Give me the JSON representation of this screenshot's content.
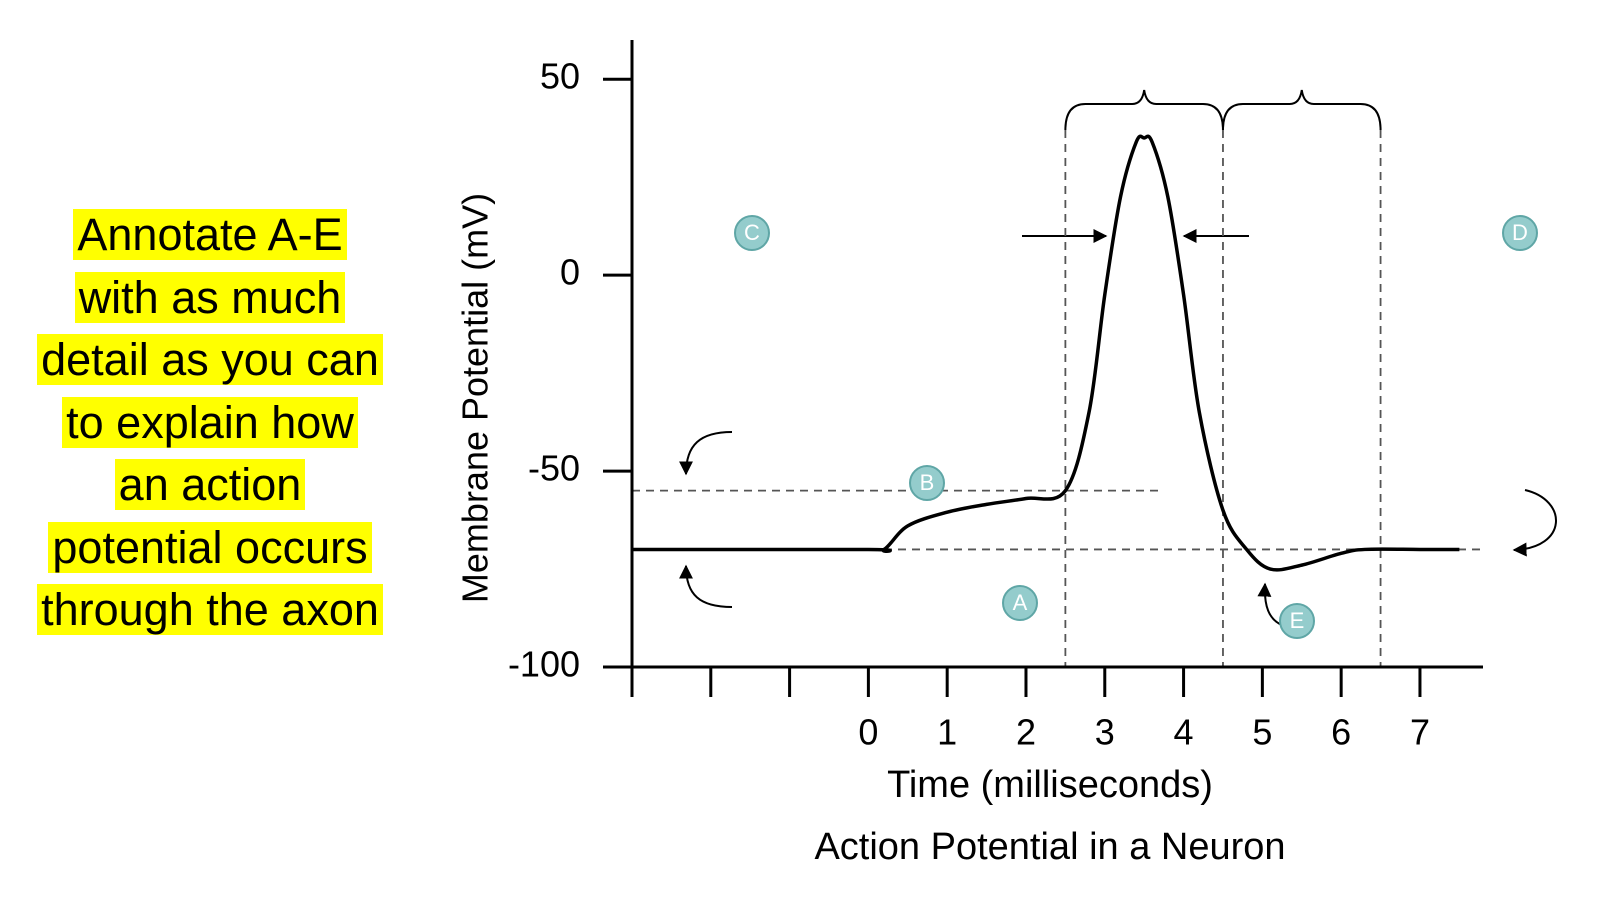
{
  "annotation": [
    "Annotate A-E",
    "with as much",
    "detail as you can",
    "to explain how",
    "an action",
    "potential occurs",
    "through the axon"
  ],
  "markers": [
    "A",
    "B",
    "C",
    "D",
    "E"
  ],
  "chart_data": {
    "type": "line",
    "title": "Action Potential in a Neuron",
    "xlabel": "Time (milliseconds)",
    "ylabel": "Membrane Potential (mV)",
    "x": [
      -3,
      0,
      0.2,
      0.5,
      1,
      1.5,
      2,
      2.5,
      2.8,
      3,
      3.2,
      3.4,
      3.5,
      3.6,
      3.8,
      4,
      4.2,
      4.5,
      4.8,
      5.1,
      5.5,
      6,
      6.3,
      7,
      7.5
    ],
    "values": [
      -70,
      -70,
      -70,
      -64,
      -60.5,
      -58.5,
      -57,
      -55,
      -35,
      -5,
      20,
      34,
      35,
      34,
      20,
      -5,
      -35,
      -60,
      -70,
      -75,
      -74,
      -71,
      -70,
      -70,
      -70
    ],
    "color": "#000000",
    "xlim": [
      -3,
      7.8
    ],
    "ylim": [
      -100,
      60
    ],
    "xticks": [
      {
        "value": -3,
        "label": null
      },
      {
        "value": -2,
        "label": null
      },
      {
        "value": -1,
        "label": null
      },
      0,
      1,
      2,
      3,
      4,
      5,
      6,
      7
    ],
    "yticks": [
      -100,
      -50,
      0,
      50
    ],
    "threshold_line": {
      "value": -55,
      "end": 3.7
    },
    "resting_line": {
      "value": -70
    },
    "vlines": [
      2.5,
      4.5,
      6.5
    ]
  }
}
